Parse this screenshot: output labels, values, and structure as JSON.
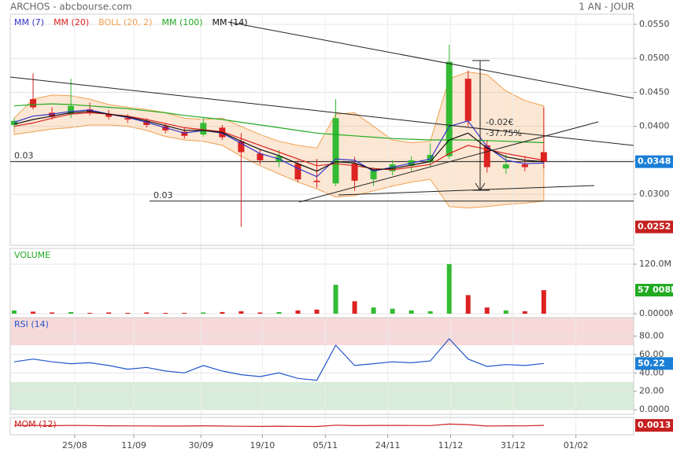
{
  "header": {
    "title": "ARCHOS - abcbourse.com",
    "period": "1 AN - JOUR"
  },
  "chart_data": [
    {
      "type": "candlestick",
      "x": [
        0,
        4,
        8,
        12,
        16,
        20,
        24,
        28,
        32,
        36,
        40,
        44,
        48,
        52,
        56,
        60,
        64,
        68,
        72,
        76,
        80,
        84,
        88,
        92,
        96,
        100,
        104,
        108,
        112
      ],
      "open": [
        0.0402,
        0.044,
        0.042,
        0.0418,
        0.0425,
        0.0418,
        0.0412,
        0.0408,
        0.04,
        0.0392,
        0.0388,
        0.0398,
        0.0378,
        0.036,
        0.0348,
        0.0345,
        0.032,
        0.0316,
        0.0345,
        0.0322,
        0.0334,
        0.0342,
        0.0348,
        0.0356,
        0.047,
        0.0372,
        0.0338,
        0.0344,
        0.0362
      ],
      "high": [
        0.0412,
        0.0478,
        0.0428,
        0.047,
        0.0435,
        0.0424,
        0.0418,
        0.0412,
        0.0404,
        0.0398,
        0.0412,
        0.0402,
        0.039,
        0.0366,
        0.0365,
        0.035,
        0.0352,
        0.044,
        0.0355,
        0.034,
        0.035,
        0.0356,
        0.0375,
        0.052,
        0.0482,
        0.038,
        0.0358,
        0.0356,
        0.0428
      ],
      "low": [
        0.0398,
        0.0425,
        0.041,
        0.0412,
        0.0416,
        0.041,
        0.0405,
        0.0398,
        0.039,
        0.0382,
        0.0385,
        0.038,
        0.0252,
        0.0344,
        0.034,
        0.0318,
        0.031,
        0.0312,
        0.0305,
        0.0312,
        0.0328,
        0.0334,
        0.034,
        0.0352,
        0.04,
        0.0332,
        0.033,
        0.0334,
        0.0338
      ],
      "close": [
        0.0408,
        0.0428,
        0.0414,
        0.043,
        0.042,
        0.0414,
        0.041,
        0.0402,
        0.0394,
        0.0386,
        0.0405,
        0.0384,
        0.0362,
        0.035,
        0.0356,
        0.0322,
        0.0318,
        0.0412,
        0.032,
        0.0336,
        0.0344,
        0.035,
        0.0358,
        0.0495,
        0.0408,
        0.034,
        0.0344,
        0.034,
        0.0348
      ],
      "up_color": "#33bb33",
      "down_color": "#dd2222",
      "series": [
        {
          "name": "MM (7)",
          "color": "#3333cc",
          "values": [
            0.0406,
            0.0415,
            0.0418,
            0.0422,
            0.0424,
            0.0418,
            0.0413,
            0.0406,
            0.0398,
            0.039,
            0.0394,
            0.039,
            0.0375,
            0.036,
            0.0352,
            0.0338,
            0.0326,
            0.0352,
            0.035,
            0.0334,
            0.034,
            0.0346,
            0.0352,
            0.04,
            0.0408,
            0.037,
            0.035,
            0.0345,
            0.0346
          ]
        },
        {
          "name": "MM (20)",
          "color": "#dd2222",
          "values": [
            0.04,
            0.0405,
            0.0412,
            0.0418,
            0.042,
            0.0418,
            0.0415,
            0.041,
            0.0404,
            0.0398,
            0.0395,
            0.0392,
            0.0382,
            0.0372,
            0.0362,
            0.0352,
            0.0342,
            0.0345,
            0.0342,
            0.0338,
            0.0336,
            0.034,
            0.0344,
            0.036,
            0.0372,
            0.0366,
            0.036,
            0.0355,
            0.035
          ]
        },
        {
          "name": "MM (100)",
          "color": "#22aa22",
          "values": [
            0.043,
            0.0432,
            0.0433,
            0.0432,
            0.043,
            0.0428,
            0.0426,
            0.0423,
            0.042,
            0.0416,
            0.0413,
            0.041,
            0.0406,
            0.0402,
            0.0398,
            0.0394,
            0.039,
            0.0388,
            0.0386,
            0.0384,
            0.0382,
            0.0381,
            0.038,
            0.038,
            0.038,
            0.0379,
            0.0378,
            0.0377,
            0.0376
          ]
        },
        {
          "name": "MM (14)",
          "color": "#111111",
          "values": [
            0.0403,
            0.041,
            0.0415,
            0.042,
            0.0422,
            0.0418,
            0.0414,
            0.0408,
            0.0401,
            0.0394,
            0.0394,
            0.0391,
            0.0378,
            0.0366,
            0.0357,
            0.0345,
            0.0334,
            0.0348,
            0.0346,
            0.0336,
            0.0338,
            0.0343,
            0.0348,
            0.038,
            0.039,
            0.0368,
            0.0355,
            0.035,
            0.0348
          ]
        }
      ],
      "band": {
        "name": "BOLL (20, 2)",
        "color": "#f0a050",
        "upper": [
          0.0412,
          0.044,
          0.0446,
          0.0445,
          0.044,
          0.0432,
          0.0428,
          0.0425,
          0.042,
          0.0412,
          0.041,
          0.0412,
          0.04,
          0.0388,
          0.0378,
          0.0372,
          0.0368,
          0.0418,
          0.042,
          0.04,
          0.038,
          0.0376,
          0.0378,
          0.047,
          0.048,
          0.0476,
          0.0452,
          0.0438,
          0.043
        ],
        "lower": [
          0.0388,
          0.0392,
          0.0396,
          0.0398,
          0.0402,
          0.0402,
          0.04,
          0.0394,
          0.0385,
          0.038,
          0.0378,
          0.0372,
          0.0356,
          0.0342,
          0.033,
          0.0318,
          0.0308,
          0.0296,
          0.0298,
          0.0305,
          0.0312,
          0.0318,
          0.0322,
          0.0282,
          0.028,
          0.0282,
          0.0285,
          0.0287,
          0.029
        ]
      },
      "xlim": [
        0,
        131
      ],
      "ylim": [
        0.0225,
        0.0565
      ],
      "yticks": [
        {
          "value": 0.055,
          "label": "0.0550"
        },
        {
          "value": 0.05,
          "label": "0.0500"
        },
        {
          "value": 0.045,
          "label": "0.0450"
        },
        {
          "value": 0.04,
          "label": "0.0400"
        },
        {
          "value": 0.035,
          "label": "0.0350"
        },
        {
          "value": 0.03,
          "label": "0.0300"
        }
      ],
      "last_price": 0.0348,
      "min_price": 0.0252,
      "hlines": [
        {
          "value": 0.0348,
          "label": "0.03"
        },
        {
          "value": 0.029,
          "label": "0.03"
        }
      ],
      "annotations": [
        "-0.02€",
        "-37.75%"
      ]
    },
    {
      "type": "bar",
      "title": "VOLUME",
      "x": [
        0,
        4,
        8,
        12,
        16,
        20,
        24,
        28,
        32,
        36,
        40,
        44,
        48,
        52,
        56,
        60,
        64,
        68,
        72,
        76,
        80,
        84,
        88,
        92,
        96,
        100,
        104,
        108,
        112
      ],
      "values": [
        8000000,
        5000000,
        3000000,
        4000000,
        2000000,
        3000000,
        2000000,
        3000000,
        2000000,
        2000000,
        3000000,
        4000000,
        6000000,
        3000000,
        4000000,
        8000000,
        10000000,
        70000000,
        30000000,
        15000000,
        12000000,
        8000000,
        6000000,
        120000000,
        45000000,
        15000000,
        8000000,
        6000000,
        57008000
      ],
      "xlim": [
        0,
        131
      ],
      "ylim": [
        0,
        158000000
      ],
      "yticks": [
        {
          "value": 120000000,
          "label": "120.0M"
        },
        {
          "value": 0,
          "label": "0.0000M"
        }
      ],
      "last_label": {
        "value": 57008000,
        "label": "57 008K"
      }
    },
    {
      "type": "line",
      "title": "RSI (14)",
      "color": "#2255cc",
      "x": [
        0,
        4,
        8,
        12,
        16,
        20,
        24,
        28,
        32,
        36,
        40,
        44,
        48,
        52,
        56,
        60,
        64,
        68,
        72,
        76,
        80,
        84,
        88,
        92,
        96,
        100,
        104,
        108,
        112
      ],
      "values": [
        52,
        55,
        52,
        50,
        51,
        48,
        44,
        46,
        42,
        40,
        48,
        42,
        38,
        36,
        40,
        34,
        32,
        70,
        48,
        50,
        52,
        51,
        53,
        77,
        55,
        47,
        49,
        48,
        50.22
      ],
      "xlim": [
        0,
        131
      ],
      "ylim": [
        -5,
        100
      ],
      "yticks": [
        {
          "value": 80,
          "label": "80.00"
        },
        {
          "value": 60,
          "label": "60.00"
        },
        {
          "value": 40,
          "label": "40.00"
        },
        {
          "value": 20,
          "label": "20.00"
        },
        {
          "value": 0,
          "label": "0.0000"
        }
      ],
      "zones": [
        {
          "from": 70,
          "to": 100,
          "color": "#f7d9d9"
        },
        {
          "from": 0,
          "to": 30,
          "color": "#d9ecd9"
        }
      ],
      "last_value": 50.22
    },
    {
      "type": "line",
      "title": "MOM (12)",
      "color": "#cc2222",
      "x": [
        0,
        4,
        8,
        12,
        16,
        20,
        24,
        28,
        32,
        36,
        40,
        44,
        48,
        52,
        56,
        60,
        64,
        68,
        72,
        76,
        80,
        84,
        88,
        92,
        96,
        100,
        104,
        108,
        112
      ],
      "values": [
        0.0008,
        0.0012,
        0.0004,
        0.001,
        0.0006,
        -0.0004,
        -0.0006,
        -0.0008,
        -0.001,
        -0.0012,
        -0.0004,
        -0.001,
        -0.002,
        -0.0025,
        -0.0018,
        -0.0026,
        -0.003,
        0.002,
        0.0004,
        0.001,
        0.0012,
        0.0008,
        0.0006,
        0.006,
        0.004,
        -0.001,
        -0.0004,
        -0.0006,
        0.0013
      ],
      "xlim": [
        0,
        131
      ],
      "ylim": [
        -0.03,
        0.03
      ],
      "xticks": [
        {
          "value": 12.8,
          "label": "25/08"
        },
        {
          "value": 25.3,
          "label": "11/09"
        },
        {
          "value": 39.5,
          "label": "30/09"
        },
        {
          "value": 52.5,
          "label": "19/10"
        },
        {
          "value": 65.8,
          "label": "05/11"
        },
        {
          "value": 79,
          "label": "24/11"
        },
        {
          "value": 92.3,
          "label": "11/12"
        },
        {
          "value": 105.5,
          "label": "31/12"
        },
        {
          "value": 118.8,
          "label": "01/02"
        }
      ],
      "last_value": 0.0013
    }
  ]
}
